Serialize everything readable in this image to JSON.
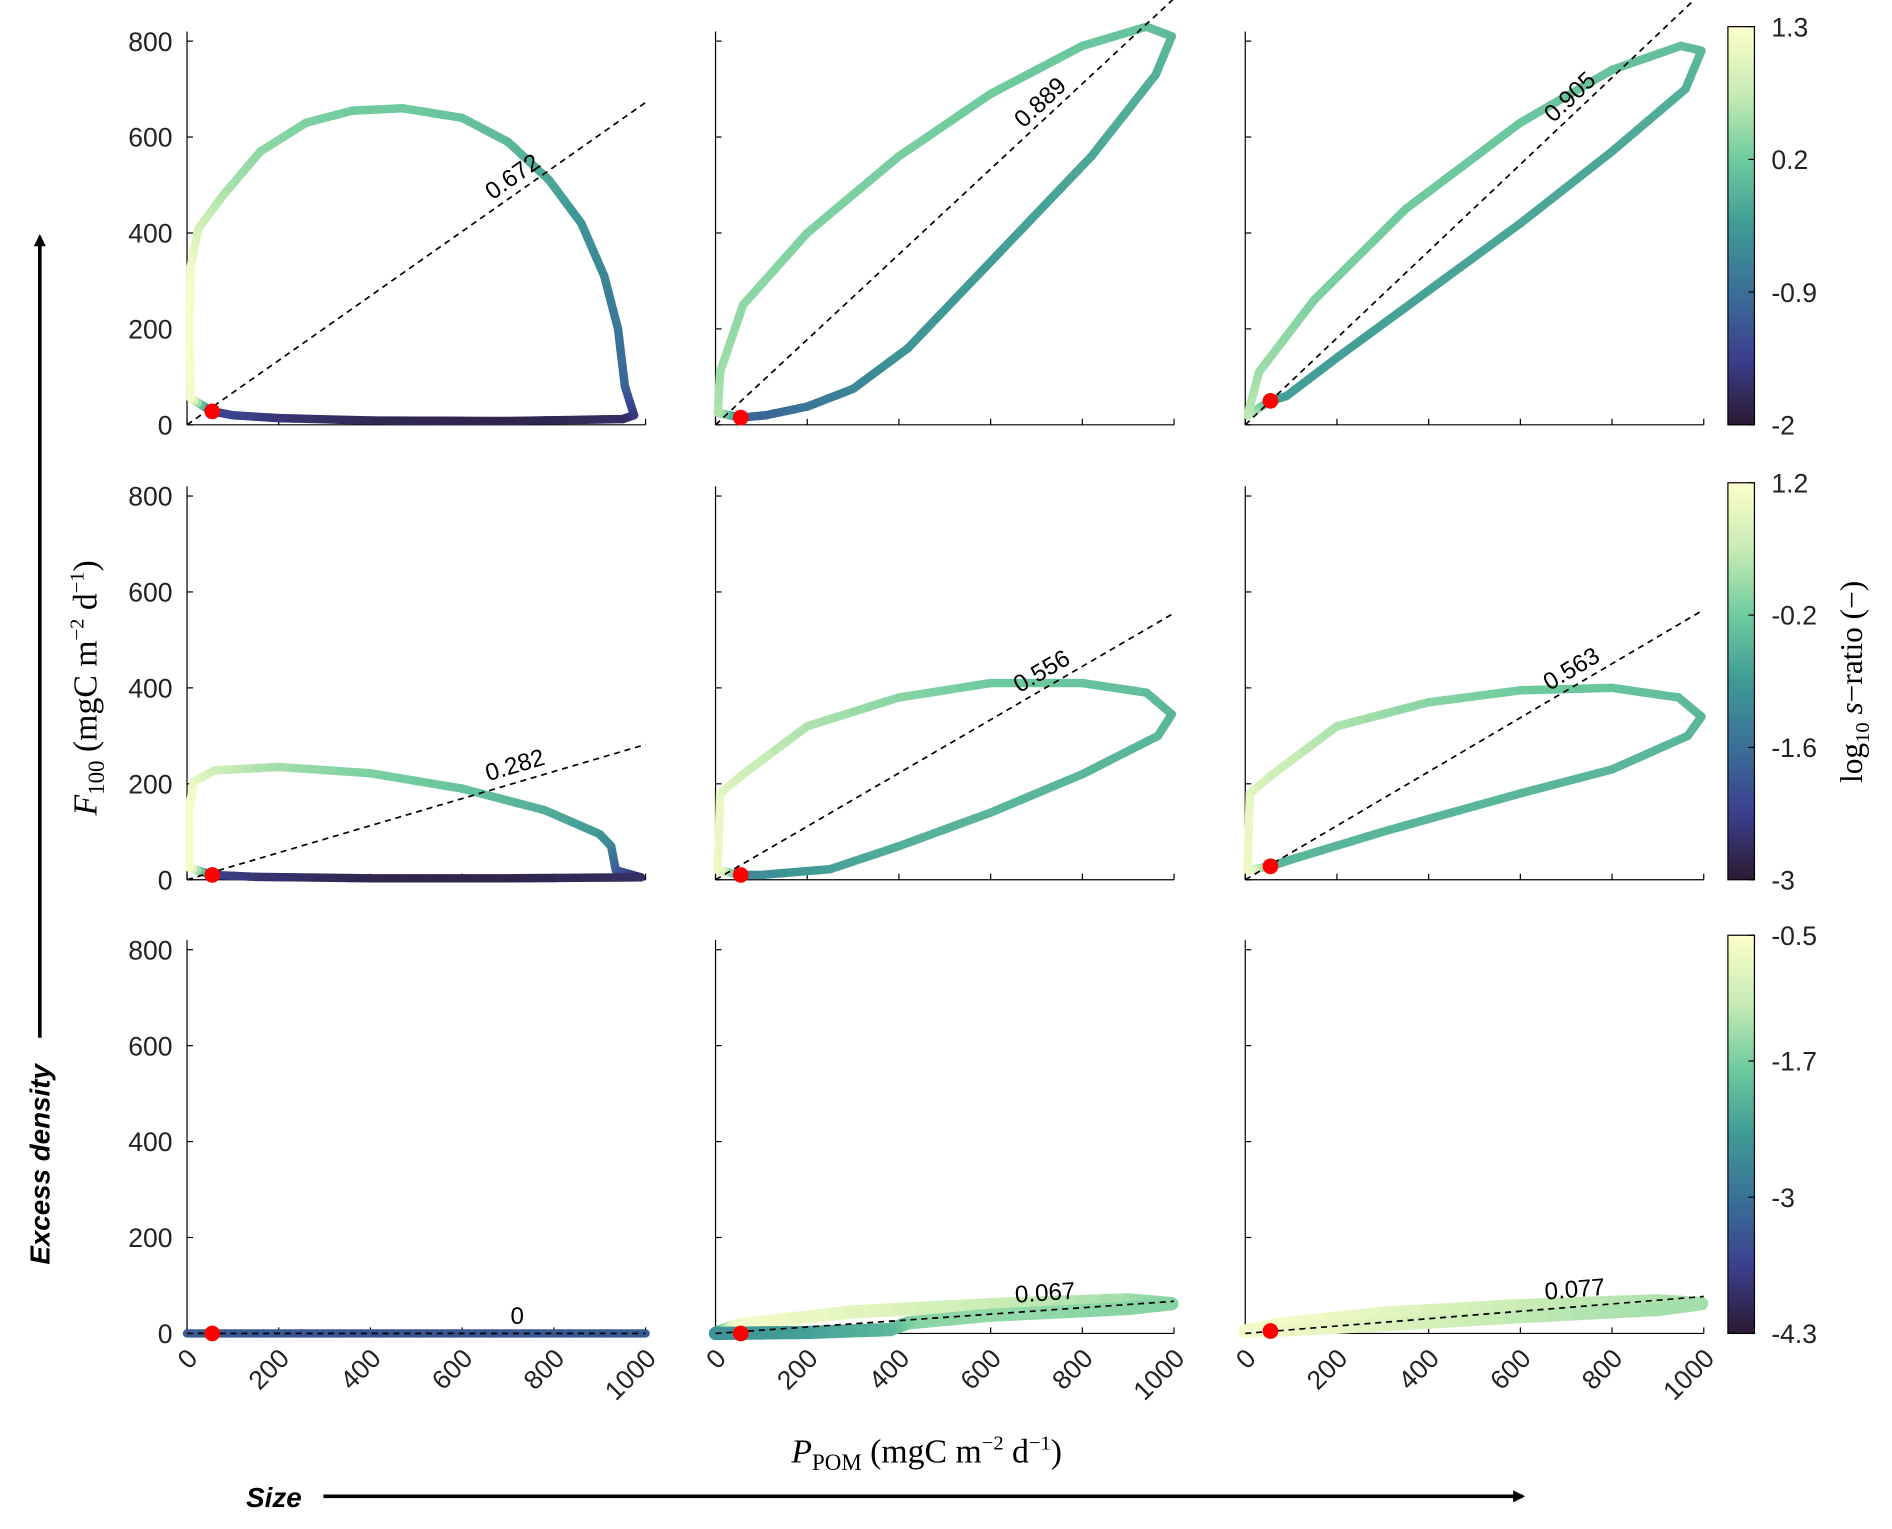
{
  "chart_data": {
    "type": "line",
    "layout": "3x3 grid",
    "xlabel": {
      "main": "P",
      "sub": "POM",
      "unit": "(mgC m",
      "exp1": "−2",
      "mid": " d",
      "exp2": "−1",
      "close": ")"
    },
    "ylabel": {
      "main": "F",
      "sub": "100",
      "unit": "(mgC m",
      "exp1": "−2",
      "mid": " d",
      "exp2": "−1",
      "close": ")"
    },
    "colorbar_label": {
      "pre": "log",
      "sub": "10",
      "var": "s",
      "post": "−ratio (−)"
    },
    "arrow_y_label": "Excess density",
    "arrow_x_label": "Size",
    "xlim": [
      0,
      1000
    ],
    "ylim": [
      0,
      800
    ],
    "xticks": [
      "0",
      "200",
      "400",
      "600",
      "800",
      "1000"
    ],
    "yticks": [
      "0",
      "200",
      "400",
      "600",
      "800"
    ],
    "colorbars": [
      {
        "clim": [
          -2,
          1.3
        ],
        "ticks": [
          "1.3",
          "0.2",
          "-0.9",
          "-2"
        ]
      },
      {
        "clim": [
          -3,
          1.2
        ],
        "ticks": [
          "1.2",
          "-0.2",
          "-1.6",
          "-3"
        ]
      },
      {
        "clim": [
          -4.3,
          -0.5
        ],
        "ticks": [
          "-0.5",
          "-1.7",
          "-3",
          "-4.3"
        ]
      }
    ],
    "colormap": [
      "#2b1a33",
      "#3b3f8c",
      "#3a6f98",
      "#3f9a96",
      "#6fcb9e",
      "#c8ecb4",
      "#fdfecc"
    ],
    "marker_color": "#ff0000",
    "panels": [
      {
        "row": 0,
        "col": 0,
        "ratio": 0.672,
        "label": "0.672",
        "marker": [
          55,
          28
        ],
        "width": 7,
        "loop": [
          [
            55,
            28,
            -1.6
          ],
          [
            8,
            55,
            1.2
          ],
          [
            5,
            200,
            1.25
          ],
          [
            8,
            330,
            1.2
          ],
          [
            25,
            410,
            0.9
          ],
          [
            80,
            480,
            0.6
          ],
          [
            160,
            570,
            0.4
          ],
          [
            260,
            630,
            0.3
          ],
          [
            360,
            655,
            0.2
          ],
          [
            470,
            660,
            0.2
          ],
          [
            600,
            640,
            0.1
          ],
          [
            700,
            590,
            0.0
          ],
          [
            790,
            510,
            -0.2
          ],
          [
            860,
            420,
            -0.4
          ],
          [
            910,
            310,
            -0.6
          ],
          [
            940,
            200,
            -0.8
          ],
          [
            955,
            80,
            -1.0
          ],
          [
            975,
            20,
            -1.5
          ],
          [
            950,
            12,
            -1.7
          ],
          [
            700,
            8,
            -1.85
          ],
          [
            400,
            9,
            -1.8
          ],
          [
            200,
            14,
            -1.6
          ],
          [
            100,
            20,
            -1.4
          ],
          [
            55,
            28,
            -1.4
          ]
        ]
      },
      {
        "row": 0,
        "col": 1,
        "ratio": 0.889,
        "label": "0.889",
        "marker": [
          55,
          15
        ],
        "width": 7,
        "loop": [
          [
            55,
            15,
            -1.0
          ],
          [
            5,
            25,
            0.6
          ],
          [
            10,
            110,
            0.5
          ],
          [
            60,
            250,
            0.4
          ],
          [
            200,
            400,
            0.3
          ],
          [
            400,
            560,
            0.25
          ],
          [
            600,
            690,
            0.2
          ],
          [
            800,
            790,
            0.15
          ],
          [
            940,
            830,
            0.1
          ],
          [
            995,
            810,
            0.0
          ],
          [
            960,
            730,
            -0.1
          ],
          [
            820,
            560,
            -0.2
          ],
          [
            620,
            360,
            -0.3
          ],
          [
            420,
            160,
            -0.4
          ],
          [
            300,
            75,
            -0.6
          ],
          [
            200,
            38,
            -0.8
          ],
          [
            110,
            20,
            -1.0
          ],
          [
            55,
            15,
            -1.0
          ]
        ]
      },
      {
        "row": 0,
        "col": 2,
        "ratio": 0.905,
        "label": "0.905",
        "marker": [
          55,
          50
        ],
        "width": 7,
        "loop": [
          [
            55,
            50,
            -0.3
          ],
          [
            5,
            20,
            0.7
          ],
          [
            30,
            110,
            0.5
          ],
          [
            150,
            260,
            0.3
          ],
          [
            350,
            450,
            0.2
          ],
          [
            600,
            630,
            0.15
          ],
          [
            800,
            740,
            0.1
          ],
          [
            950,
            790,
            0.05
          ],
          [
            995,
            780,
            0.0
          ],
          [
            960,
            700,
            -0.1
          ],
          [
            800,
            570,
            -0.2
          ],
          [
            600,
            420,
            -0.2
          ],
          [
            400,
            280,
            -0.25
          ],
          [
            200,
            140,
            -0.3
          ],
          [
            90,
            60,
            -0.3
          ],
          [
            55,
            50,
            -0.3
          ]
        ]
      },
      {
        "row": 1,
        "col": 0,
        "ratio": 0.282,
        "label": "0.282",
        "marker": [
          55,
          10
        ],
        "width": 7,
        "loop": [
          [
            55,
            10,
            -2.2
          ],
          [
            5,
            25,
            1.1
          ],
          [
            5,
            150,
            1.15
          ],
          [
            15,
            205,
            1.0
          ],
          [
            60,
            228,
            0.6
          ],
          [
            200,
            235,
            0.2
          ],
          [
            400,
            222,
            -0.1
          ],
          [
            600,
            190,
            -0.3
          ],
          [
            780,
            145,
            -0.6
          ],
          [
            900,
            95,
            -0.9
          ],
          [
            925,
            70,
            -1.2
          ],
          [
            935,
            20,
            -1.8
          ],
          [
            990,
            5,
            -2.6
          ],
          [
            700,
            3,
            -2.8
          ],
          [
            400,
            3,
            -2.8
          ],
          [
            150,
            6,
            -2.5
          ],
          [
            55,
            10,
            -2.3
          ]
        ]
      },
      {
        "row": 1,
        "col": 1,
        "ratio": 0.556,
        "label": "0.556",
        "marker": [
          55,
          10
        ],
        "width": 7,
        "loop": [
          [
            55,
            10,
            -1.2
          ],
          [
            5,
            20,
            1.0
          ],
          [
            10,
            180,
            0.9
          ],
          [
            60,
            220,
            0.6
          ],
          [
            200,
            320,
            0.3
          ],
          [
            400,
            380,
            0.0
          ],
          [
            600,
            410,
            -0.2
          ],
          [
            800,
            410,
            -0.3
          ],
          [
            940,
            390,
            -0.4
          ],
          [
            995,
            345,
            -0.5
          ],
          [
            965,
            300,
            -0.5
          ],
          [
            800,
            220,
            -0.5
          ],
          [
            600,
            140,
            -0.5
          ],
          [
            400,
            70,
            -0.6
          ],
          [
            250,
            22,
            -0.8
          ],
          [
            100,
            10,
            -1.1
          ],
          [
            55,
            10,
            -1.2
          ]
        ]
      },
      {
        "row": 1,
        "col": 2,
        "ratio": 0.563,
        "label": "0.563",
        "marker": [
          55,
          28
        ],
        "width": 7,
        "loop": [
          [
            55,
            28,
            -0.5
          ],
          [
            5,
            20,
            1.0
          ],
          [
            10,
            180,
            0.9
          ],
          [
            60,
            220,
            0.6
          ],
          [
            200,
            320,
            0.3
          ],
          [
            400,
            370,
            0.0
          ],
          [
            600,
            395,
            -0.2
          ],
          [
            800,
            400,
            -0.3
          ],
          [
            945,
            380,
            -0.4
          ],
          [
            995,
            340,
            -0.5
          ],
          [
            965,
            300,
            -0.5
          ],
          [
            800,
            230,
            -0.5
          ],
          [
            600,
            180,
            -0.5
          ],
          [
            300,
            100,
            -0.5
          ],
          [
            100,
            42,
            -0.5
          ],
          [
            55,
            28,
            -0.5
          ]
        ]
      },
      {
        "row": 2,
        "col": 0,
        "ratio": 0,
        "label": "0",
        "marker": [
          55,
          0
        ],
        "width": 7,
        "loop": [
          [
            0,
            0,
            -3.3
          ],
          [
            500,
            0,
            -3.4
          ],
          [
            1000,
            0,
            -3.3
          ]
        ]
      },
      {
        "row": 2,
        "col": 1,
        "ratio": 0.067,
        "label": "0.067",
        "marker": [
          55,
          0
        ],
        "width": 11,
        "loop": [
          [
            0,
            0,
            -2.5
          ],
          [
            50,
            18,
            -0.6
          ],
          [
            300,
            45,
            -0.8
          ],
          [
            600,
            60,
            -1.1
          ],
          [
            900,
            70,
            -1.4
          ],
          [
            995,
            62,
            -1.6
          ],
          [
            900,
            52,
            -1.6
          ],
          [
            600,
            38,
            -1.5
          ],
          [
            420,
            22,
            -1.6
          ],
          [
            380,
            8,
            -2.0
          ],
          [
            200,
            2,
            -2.3
          ],
          [
            0,
            0,
            -2.5
          ]
        ]
      },
      {
        "row": 2,
        "col": 2,
        "ratio": 0.077,
        "label": "0.077",
        "marker": [
          55,
          5
        ],
        "width": 11,
        "loop": [
          [
            0,
            5,
            -0.6
          ],
          [
            80,
            20,
            -0.6
          ],
          [
            300,
            42,
            -0.8
          ],
          [
            600,
            58,
            -1.1
          ],
          [
            900,
            68,
            -1.3
          ],
          [
            995,
            62,
            -1.4
          ],
          [
            900,
            50,
            -1.4
          ],
          [
            600,
            35,
            -1.2
          ],
          [
            300,
            18,
            -0.9
          ],
          [
            100,
            8,
            -0.7
          ],
          [
            0,
            5,
            -0.6
          ]
        ]
      }
    ]
  }
}
